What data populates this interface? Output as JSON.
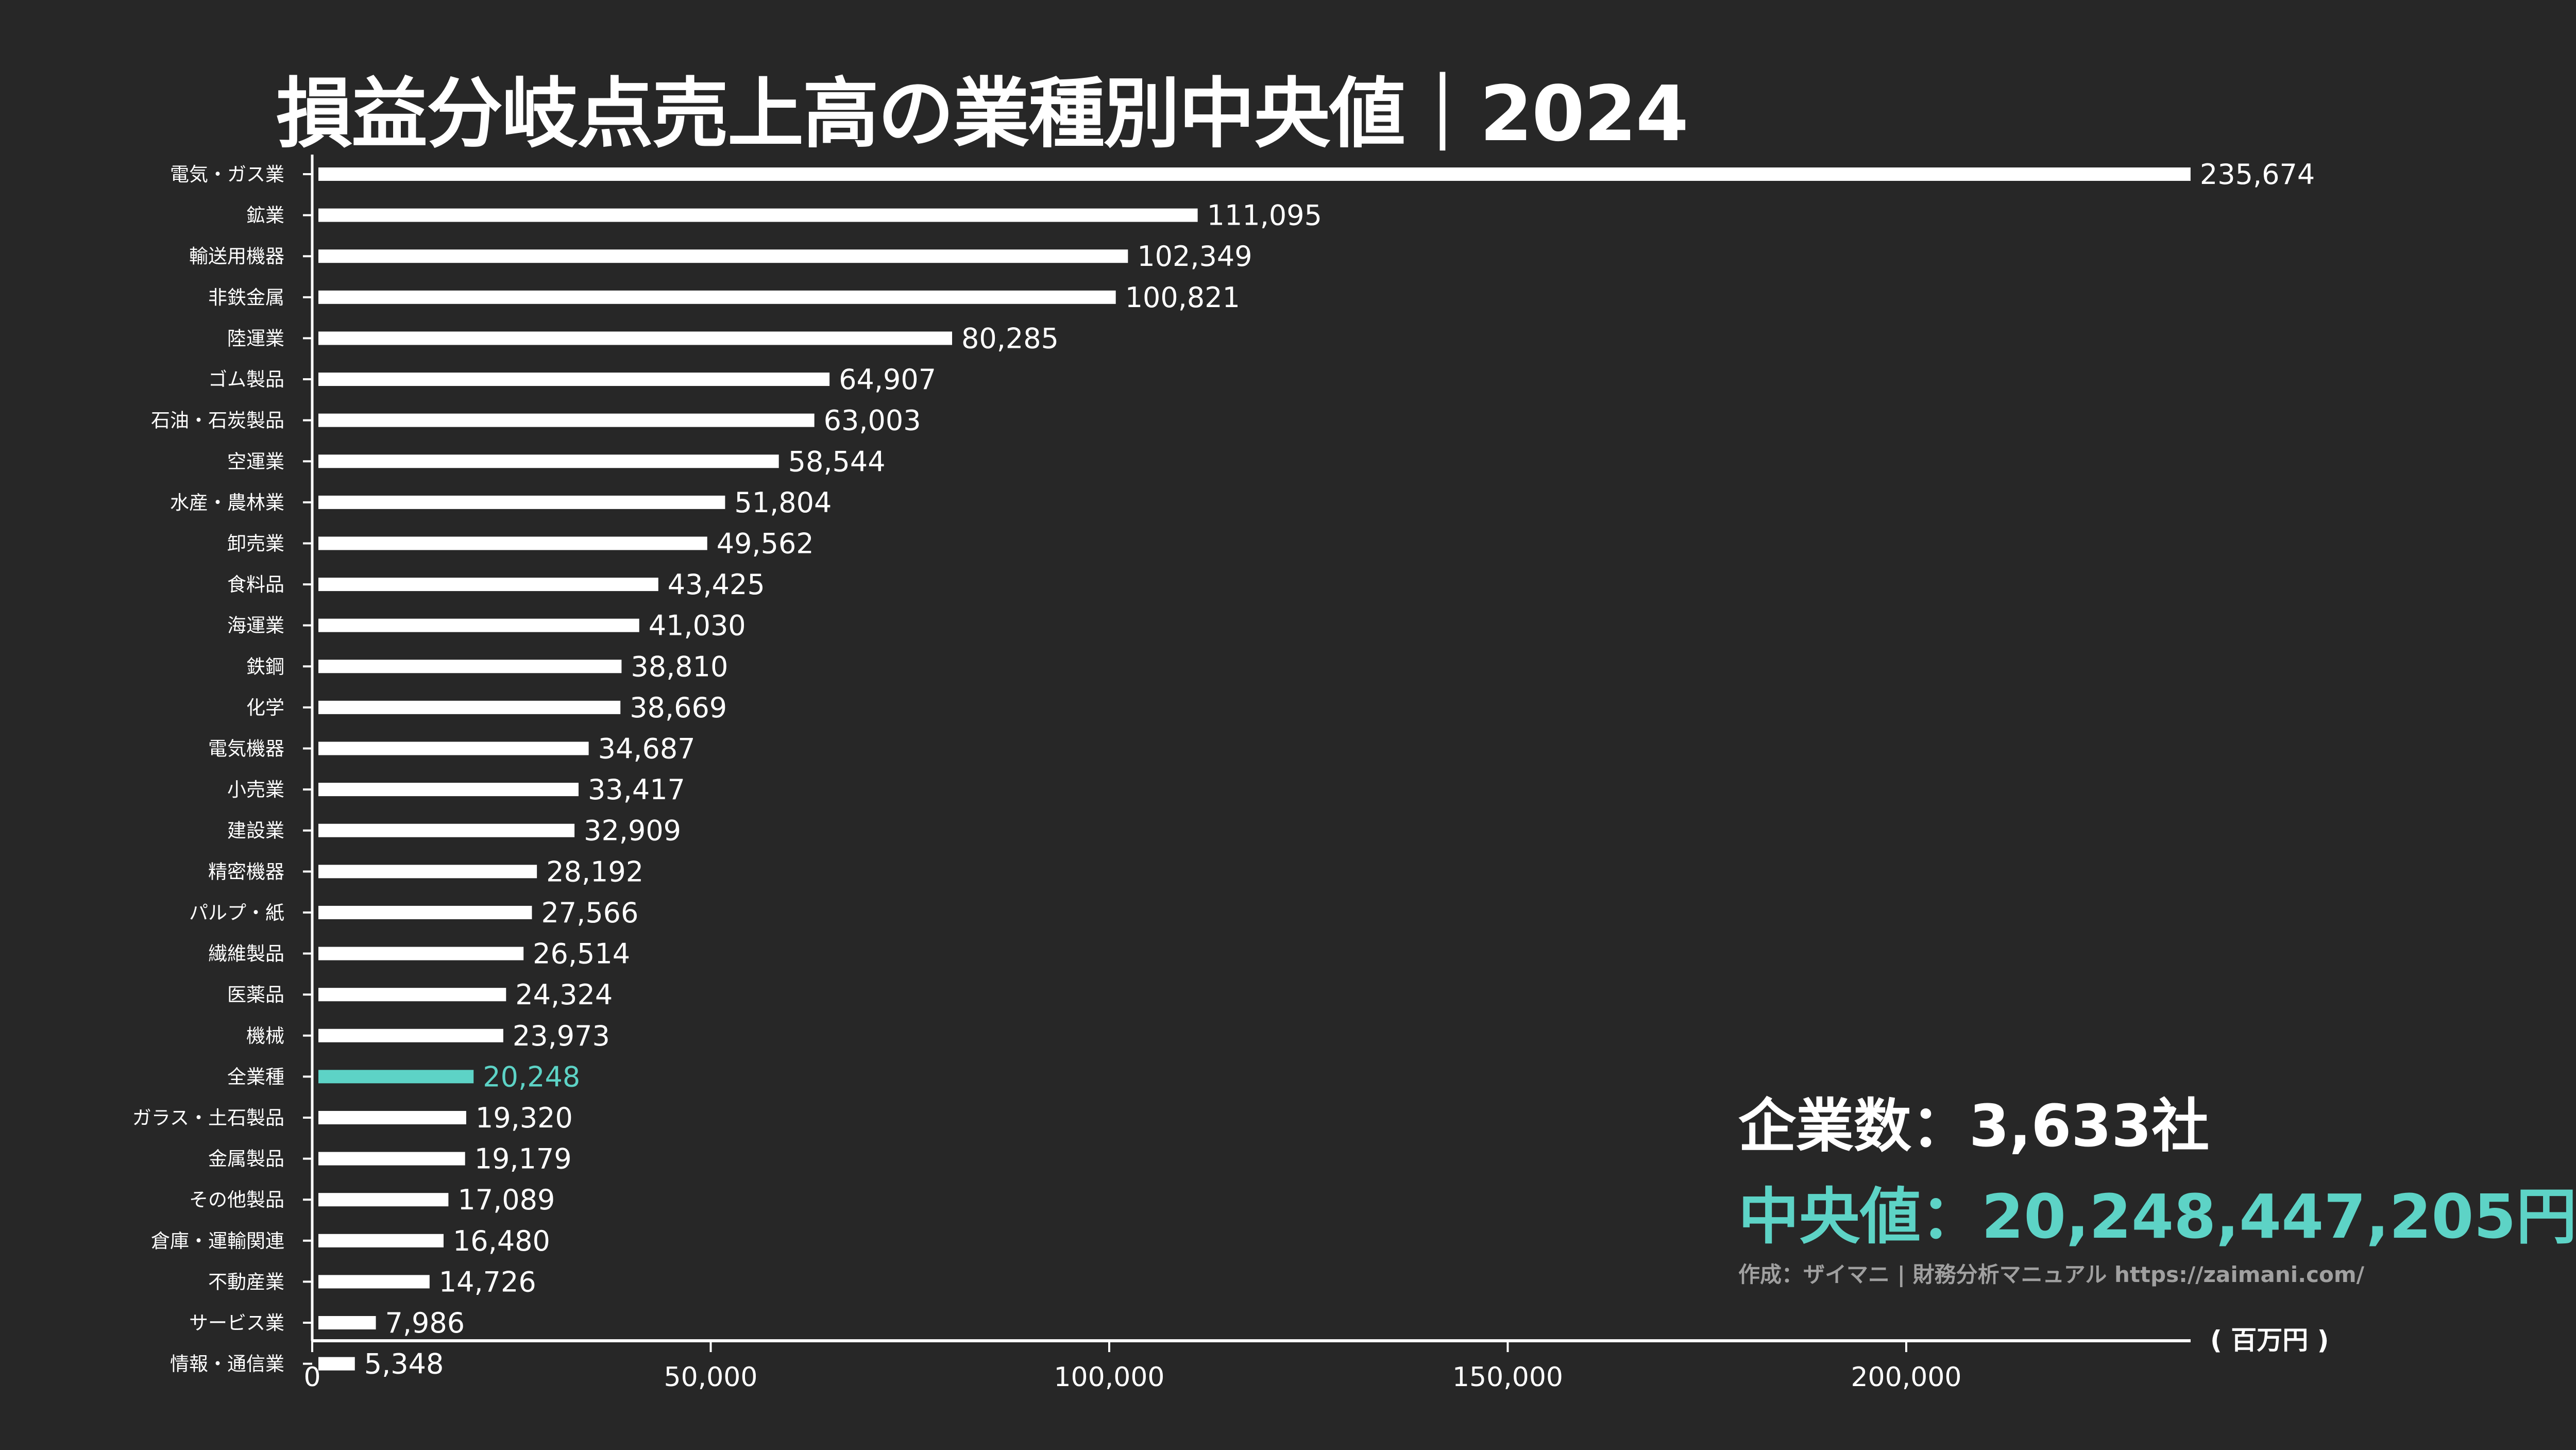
{
  "chart_data": {
    "type": "bar",
    "orientation": "horizontal",
    "title": "損益分岐点売上高の業種別中央値｜2024",
    "categories": [
      "電気・ガス業",
      "鉱業",
      "輸送用機器",
      "非鉄金属",
      "陸運業",
      "ゴム製品",
      "石油・石炭製品",
      "空運業",
      "水産・農林業",
      "卸売業",
      "食料品",
      "海運業",
      "鉄鋼",
      "化学",
      "電気機器",
      "小売業",
      "建設業",
      "精密機器",
      "パルプ・紙",
      "繊維製品",
      "医薬品",
      "機械",
      "全業種",
      "ガラス・土石製品",
      "金属製品",
      "その他製品",
      "倉庫・運輸関連",
      "不動産業",
      "サービス業",
      "情報・通信業"
    ],
    "values": [
      235674,
      111095,
      102349,
      100821,
      80285,
      64907,
      63003,
      58544,
      51804,
      49562,
      43425,
      41030,
      38810,
      38669,
      34687,
      33417,
      32909,
      28192,
      27566,
      26514,
      24324,
      23973,
      20248,
      19320,
      19179,
      17089,
      16480,
      14726,
      7986,
      5348
    ],
    "value_labels": [
      "235,674",
      "111,095",
      "102,349",
      "100,821",
      "80,285",
      "64,907",
      "63,003",
      "58,544",
      "51,804",
      "49,562",
      "43,425",
      "41,030",
      "38,810",
      "38,669",
      "34,687",
      "33,417",
      "32,909",
      "28,192",
      "27,566",
      "26,514",
      "24,324",
      "23,973",
      "20,248",
      "19,320",
      "19,179",
      "17,089",
      "16,480",
      "14,726",
      "7,986",
      "5,348"
    ],
    "highlight_category": "全業種",
    "xlim": [
      0,
      235674
    ],
    "xticks": [
      0,
      50000,
      100000,
      150000,
      200000
    ],
    "xtick_labels": [
      "0",
      "50,000",
      "100,000",
      "150,000",
      "200,000"
    ],
    "xlabel": "( 百万円 )",
    "ylabel": "",
    "grid": false,
    "colors": {
      "bar": "#ffffff",
      "highlight": "#5dd3c6",
      "background": "#272727",
      "credit": "#a0a0a0"
    }
  },
  "info": {
    "company_count": "企業数：3,633社",
    "median": "中央値：20,248,447,205円",
    "credit": "作成：ザイマニ | 財務分析マニュアル https://zaimani.com/"
  }
}
